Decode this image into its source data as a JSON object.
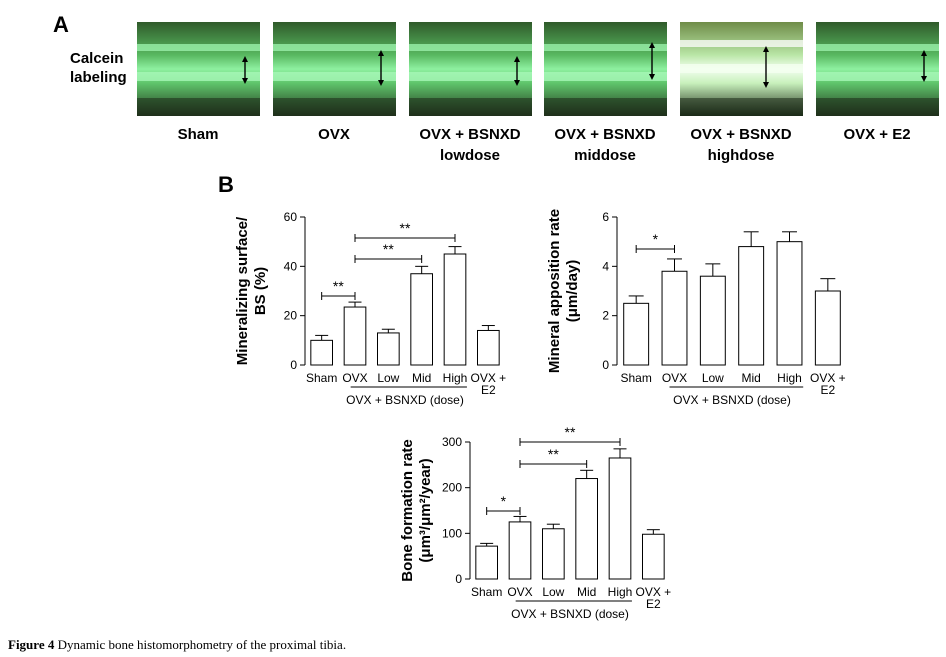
{
  "panel_a": {
    "letter": "A",
    "row_label_line1": "Calcein",
    "row_label_line2": "labeling",
    "groups": [
      {
        "line1": "Sham",
        "line2": ""
      },
      {
        "line1": "OVX",
        "line2": ""
      },
      {
        "line1": "OVX + BSNXD",
        "line2": "lowdose"
      },
      {
        "line1": "OVX + BSNXD",
        "line2": "middose"
      },
      {
        "line1": "OVX + BSNXD",
        "line2": "highdose"
      },
      {
        "line1": "OVX + E2",
        "line2": ""
      }
    ]
  },
  "panel_b": {
    "letter": "B"
  },
  "chart_data": [
    {
      "type": "bar",
      "categories": [
        "Sham",
        "OVX",
        "Low",
        "Mid",
        "High",
        "OVX +|E2"
      ],
      "values": [
        10,
        23.5,
        13,
        37,
        45,
        14
      ],
      "errors": [
        2,
        2,
        1.5,
        3,
        3,
        2
      ],
      "ylabel_line1": "Mineralizing surface/",
      "ylabel_line2": "BS (%)",
      "ylim": [
        0,
        60
      ],
      "yticks": [
        0,
        20,
        40,
        60
      ],
      "group_label": "OVX + BSNXD (dose)",
      "significance": [
        {
          "from": 0,
          "to": 1,
          "label": "**"
        },
        {
          "from": 1,
          "to": 3,
          "label": "**"
        },
        {
          "from": 1,
          "to": 4,
          "label": "**"
        }
      ]
    },
    {
      "type": "bar",
      "categories": [
        "Sham",
        "OVX",
        "Low",
        "Mid",
        "High",
        "OVX +|E2"
      ],
      "values": [
        2.5,
        3.8,
        3.6,
        4.8,
        5.0,
        3.0
      ],
      "errors": [
        0.3,
        0.5,
        0.5,
        0.6,
        0.4,
        0.5
      ],
      "ylabel_line1": "Mineral apposition rate",
      "ylabel_line2": "(μm/day)",
      "ylim": [
        0,
        6
      ],
      "yticks": [
        0,
        2,
        4,
        6
      ],
      "group_label": "OVX + BSNXD (dose)",
      "significance": [
        {
          "from": 0,
          "to": 1,
          "label": "*"
        }
      ]
    },
    {
      "type": "bar",
      "categories": [
        "Sham",
        "OVX",
        "Low",
        "Mid",
        "High",
        "OVX +|E2"
      ],
      "values": [
        72,
        125,
        110,
        220,
        265,
        98
      ],
      "errors": [
        6,
        12,
        10,
        18,
        20,
        10
      ],
      "ylabel_line1": "Bone formation rate",
      "ylabel_line2": "(μm³/μm²/year)",
      "ylim": [
        0,
        300
      ],
      "yticks": [
        0,
        100,
        200,
        300
      ],
      "group_label": "OVX + BSNXD (dose)",
      "significance": [
        {
          "from": 0,
          "to": 1,
          "label": "*"
        },
        {
          "from": 1,
          "to": 3,
          "label": "**"
        },
        {
          "from": 1,
          "to": 4,
          "label": "**"
        }
      ]
    }
  ],
  "caption": {
    "label": "Figure 4",
    "text": "Dynamic bone histomorphometry of the proximal tibia."
  }
}
